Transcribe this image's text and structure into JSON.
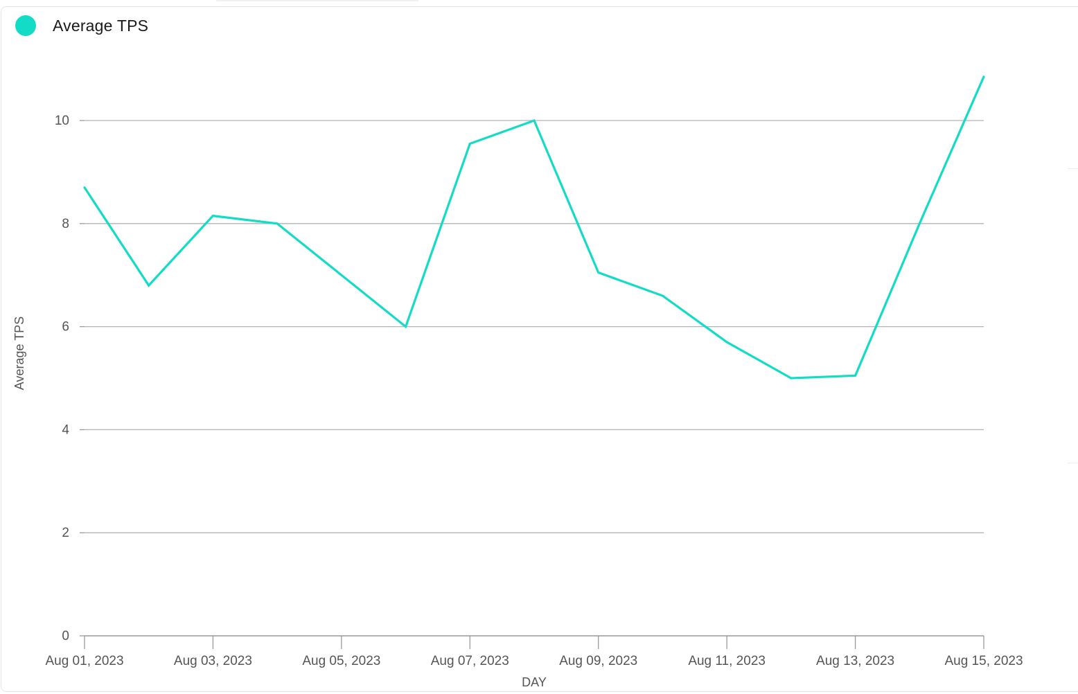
{
  "colors": {
    "series": "#13dcc6",
    "grid": "#b3b3b3",
    "axis": "#999999"
  },
  "chart_data": {
    "type": "line",
    "xlabel": "DAY",
    "ylabel": "Average TPS",
    "ylim": [
      0,
      10.8
    ],
    "yticks": [
      0,
      2,
      4,
      6,
      8,
      10
    ],
    "xlim": [
      "2023-08-01",
      "2023-08-15"
    ],
    "xtick_labels": [
      "Aug 01, 2023",
      "Aug 03, 2023",
      "Aug 05, 2023",
      "Aug 07, 2023",
      "Aug 09, 2023",
      "Aug 11, 2023",
      "Aug 13, 2023",
      "Aug 15, 2023"
    ],
    "grid": true,
    "legend_position": "top-left",
    "x": [
      "2023-08-01",
      "2023-08-02",
      "2023-08-03",
      "2023-08-04",
      "2023-08-05",
      "2023-08-06",
      "2023-08-07",
      "2023-08-08",
      "2023-08-09",
      "2023-08-10",
      "2023-08-11",
      "2023-08-12",
      "2023-08-13",
      "2023-08-14",
      "2023-08-15"
    ],
    "series": [
      {
        "name": "Average TPS",
        "values": [
          8.7,
          6.8,
          8.15,
          8.0,
          7.0,
          6.0,
          9.55,
          10.0,
          7.05,
          6.6,
          5.7,
          5.0,
          5.05,
          8.0,
          10.85
        ]
      }
    ]
  }
}
